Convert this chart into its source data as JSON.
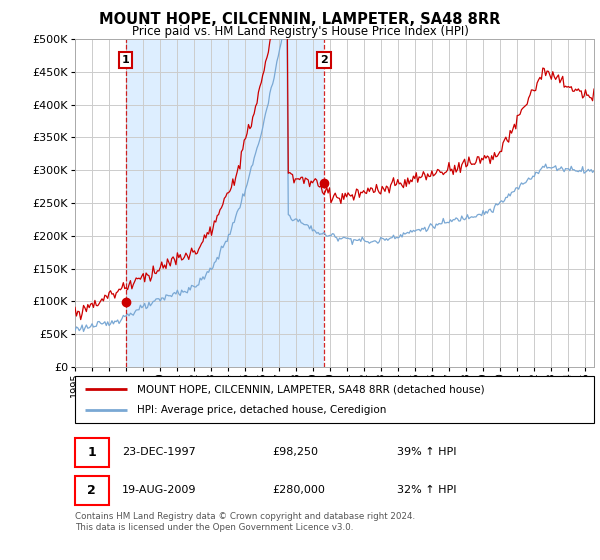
{
  "title": "MOUNT HOPE, CILCENNIN, LAMPETER, SA48 8RR",
  "subtitle": "Price paid vs. HM Land Registry's House Price Index (HPI)",
  "legend_line1": "MOUNT HOPE, CILCENNIN, LAMPETER, SA48 8RR (detached house)",
  "legend_line2": "HPI: Average price, detached house, Ceredigion",
  "annotation1_label": "1",
  "annotation1_date": "23-DEC-1997",
  "annotation1_price": "£98,250",
  "annotation1_hpi": "39% ↑ HPI",
  "annotation1_year": 1997.97,
  "annotation1_value": 98250,
  "annotation2_label": "2",
  "annotation2_date": "19-AUG-2009",
  "annotation2_price": "£280,000",
  "annotation2_hpi": "32% ↑ HPI",
  "annotation2_year": 2009.63,
  "annotation2_value": 280000,
  "footer": "Contains HM Land Registry data © Crown copyright and database right 2024.\nThis data is licensed under the Open Government Licence v3.0.",
  "ylim": [
    0,
    500000
  ],
  "xlim_start": 1995.0,
  "xlim_end": 2025.5,
  "red_color": "#cc0000",
  "blue_color": "#7aa8d4",
  "shade_color": "#ddeeff",
  "grid_color": "#cccccc",
  "background_color": "#ffffff"
}
